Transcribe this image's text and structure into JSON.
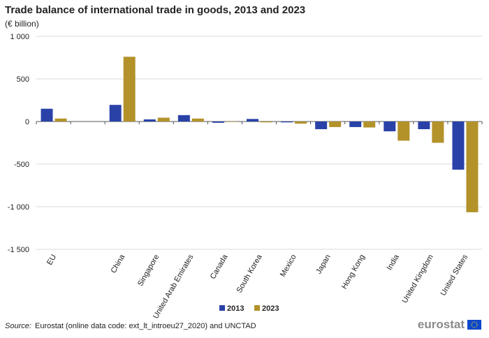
{
  "chart_data": {
    "type": "bar",
    "title": "Trade balance of international trade in goods, 2013 and 2023",
    "subtitle": "(€ billion)",
    "categories": [
      "EU",
      null,
      "China",
      "Singapore",
      "United Arab Emirates",
      "Canada",
      "South Korea",
      "Mexico",
      "Japan",
      "Hong Kong",
      "India",
      "United Kingdom",
      "United States"
    ],
    "series": [
      {
        "name": "2013",
        "color": "#2a42a8",
        "values": [
          150,
          null,
          195,
          25,
          75,
          -15,
          30,
          -10,
          -90,
          -65,
          -115,
          -90,
          -565
        ]
      },
      {
        "name": "2023",
        "color": "#b3922a",
        "values": [
          35,
          null,
          760,
          45,
          35,
          -5,
          -10,
          -25,
          -65,
          -70,
          -225,
          -250,
          -1065
        ]
      }
    ],
    "ylim": [
      -1500,
      1000
    ],
    "yticks": [
      {
        "value": 1000,
        "label": "1 000"
      },
      500,
      0,
      -500,
      {
        "value": -1000,
        "label": "-1 000"
      },
      {
        "value": -1500,
        "label": "-1 500"
      }
    ],
    "grid": true,
    "source_label": "Source:",
    "source": "Eurostat (online data code: ext_lt_introeu27_2020) and UNCTAD",
    "logo": "eurostat"
  }
}
